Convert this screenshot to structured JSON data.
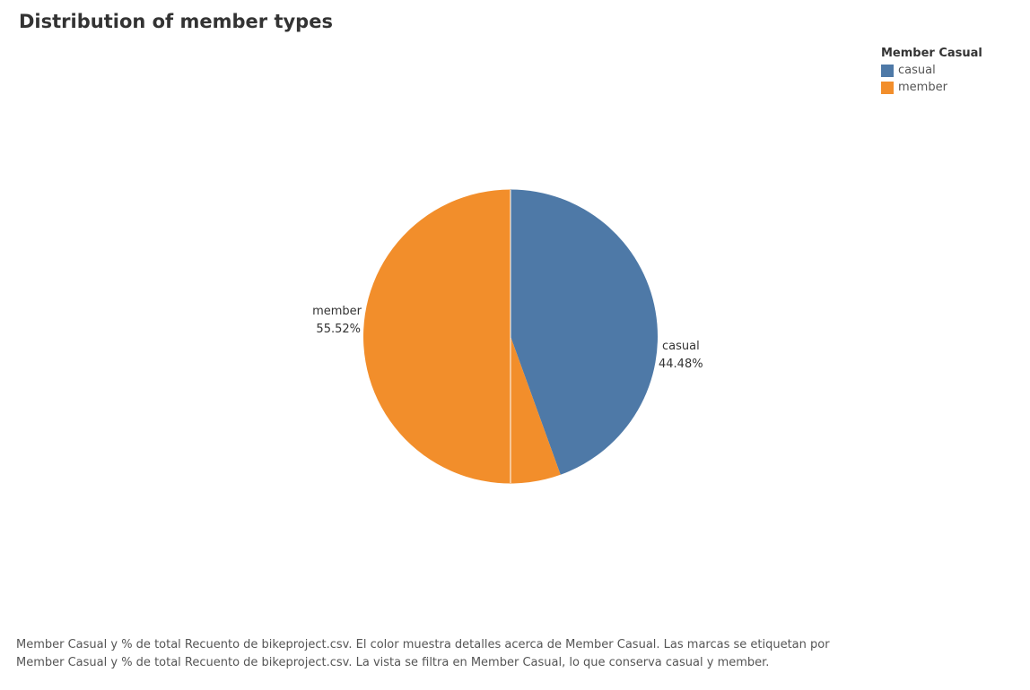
{
  "chart_data": {
    "type": "pie",
    "title": "Distribution of member types",
    "legend": {
      "title": "Member Casual",
      "placement": "top-right",
      "items": [
        {
          "label": "casual",
          "color": "#4e79a7"
        },
        {
          "label": "member",
          "color": "#f28e2b"
        }
      ]
    },
    "slices": [
      {
        "category": "casual",
        "value": 44.48,
        "label_name": "casual",
        "label_value": "44.48%",
        "color": "#4e79a7"
      },
      {
        "category": "member",
        "value": 55.52,
        "label_name": "member",
        "label_value": "55.52%",
        "color": "#f28e2b"
      }
    ],
    "caption": "Member Casual y % de total Recuento de bikeproject.csv.  El color muestra detalles acerca de Member Casual.  Las marcas se etiquetan por Member Casual y % de total Recuento de bikeproject.csv. La vista se filtra en Member Casual, lo que conserva casual y member."
  }
}
